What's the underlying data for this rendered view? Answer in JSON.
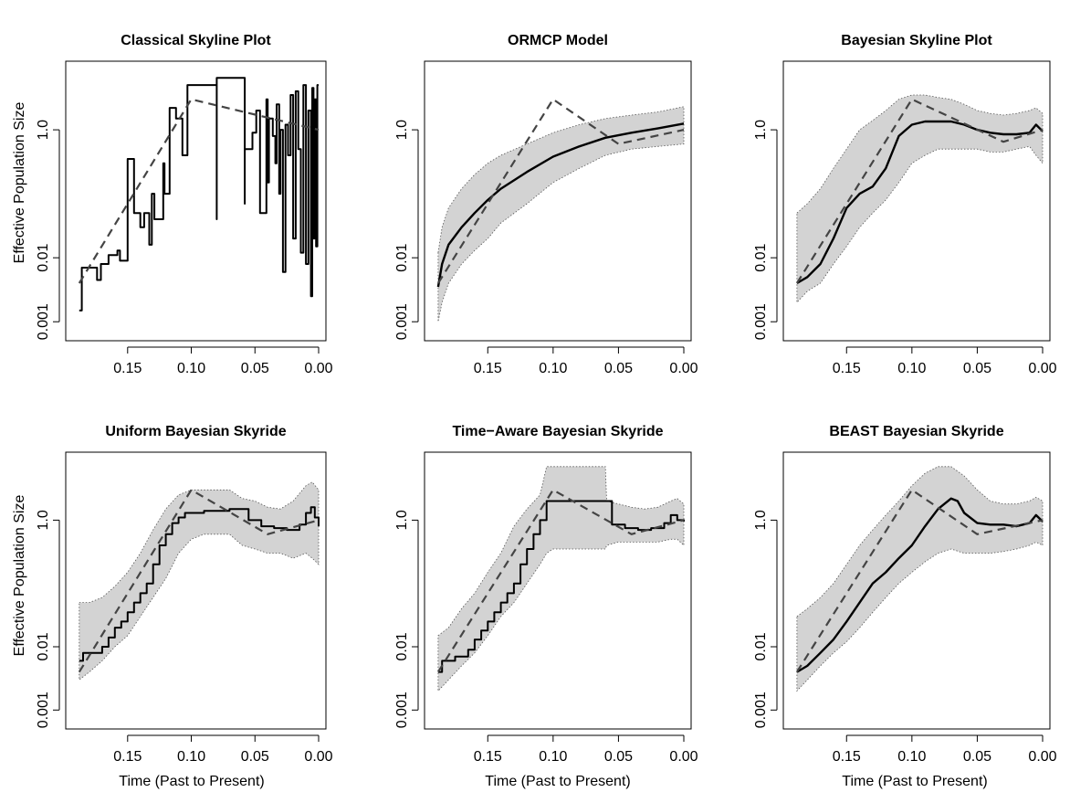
{
  "figure": {
    "xlabel": "Time (Past to Present)",
    "ylabel": "Effective Population Size"
  },
  "chart_data": [
    {
      "type": "line",
      "title": "Classical Skyline Plot",
      "xlabel": "",
      "ylabel": "Effective Population Size",
      "x_ticks": [
        "0.15",
        "0.10",
        "0.05",
        "0.00"
      ],
      "y_ticks": [
        "0.001",
        "0.01",
        "1.0"
      ],
      "y_scale": "log",
      "x_reversed": true,
      "xlim": [
        0.19,
        0.0
      ],
      "ylim": [
        0.0008,
        8.5
      ],
      "band": false,
      "series": [
        {
          "style": "solid-step",
          "x": [
            0.188,
            0.186,
            0.186,
            0.182,
            0.174,
            0.174,
            0.171,
            0.171,
            0.165,
            0.163,
            0.158,
            0.156,
            0.156,
            0.15,
            0.15,
            0.145,
            0.145,
            0.14,
            0.14,
            0.137,
            0.137,
            0.133,
            0.133,
            0.131,
            0.131,
            0.129,
            0.129,
            0.122,
            0.122,
            0.121,
            0.121,
            0.117,
            0.117,
            0.112,
            0.112,
            0.107,
            0.107,
            0.103,
            0.103,
            0.08,
            0.08,
            0.08,
            0.08,
            0.058,
            0.058,
            0.058,
            0.058,
            0.052,
            0.052,
            0.049,
            0.049,
            0.046,
            0.046,
            0.041,
            0.041,
            0.04,
            0.04,
            0.039,
            0.039,
            0.036,
            0.036,
            0.034,
            0.034,
            0.033,
            0.033,
            0.031,
            0.031,
            0.03,
            0.03,
            0.028,
            0.028,
            0.026,
            0.026,
            0.024,
            0.024,
            0.022,
            0.022,
            0.02,
            0.02,
            0.018,
            0.018,
            0.016,
            0.016,
            0.014,
            0.014,
            0.012,
            0.012,
            0.01,
            0.01,
            0.008,
            0.008,
            0.006,
            0.006,
            0.005,
            0.005,
            0.004,
            0.004,
            0.003,
            0.003,
            0.002,
            0.002,
            0.001,
            0.001,
            0.0
          ],
          "y": [
            0.0015,
            0.0015,
            0.007,
            0.007,
            0.007,
            0.0045,
            0.0045,
            0.008,
            0.011,
            0.011,
            0.013,
            0.013,
            0.009,
            0.009,
            0.35,
            0.35,
            0.05,
            0.05,
            0.03,
            0.03,
            0.05,
            0.05,
            0.016,
            0.016,
            0.1,
            0.1,
            0.04,
            0.04,
            0.3,
            0.3,
            0.1,
            0.1,
            2.2,
            2.2,
            1.5,
            1.5,
            0.4,
            0.4,
            5.0,
            5.0,
            0.04,
            0.04,
            6.5,
            6.5,
            0.07,
            0.07,
            0.5,
            0.5,
            0.9,
            0.9,
            2.0,
            2.0,
            0.05,
            0.05,
            3.0,
            3.0,
            0.15,
            0.15,
            1.5,
            1.5,
            0.8,
            0.8,
            0.3,
            0.3,
            2.5,
            2.5,
            0.1,
            0.1,
            1.0,
            1.0,
            0.006,
            0.006,
            1.2,
            1.2,
            0.4,
            0.4,
            3.5,
            3.5,
            0.02,
            0.02,
            4.0,
            4.0,
            0.5,
            0.5,
            0.012,
            0.012,
            5.0,
            5.0,
            0.008,
            0.008,
            2.0,
            2.0,
            0.0025,
            0.0025,
            4.5,
            4.5,
            0.02,
            0.02,
            3.0,
            3.0,
            0.015,
            0.015,
            5.0,
            5.0
          ]
        },
        {
          "style": "dashed",
          "x": [
            0.188,
            0.1,
            0.0
          ],
          "y": [
            0.004,
            3.0,
            1.0
          ]
        }
      ]
    },
    {
      "type": "line",
      "title": "ORMCP Model",
      "xlabel": "",
      "ylabel": "",
      "x_ticks": [
        "0.15",
        "0.10",
        "0.05",
        "0.00"
      ],
      "y_ticks": [
        "0.001",
        "0.01",
        "1.0"
      ],
      "y_scale": "log",
      "x_reversed": true,
      "xlim": [
        0.19,
        0.0
      ],
      "ylim": [
        0.0008,
        8.5
      ],
      "band": true,
      "band_x": [
        0.188,
        0.185,
        0.18,
        0.17,
        0.16,
        0.15,
        0.14,
        0.12,
        0.1,
        0.08,
        0.06,
        0.04,
        0.02,
        0.0
      ],
      "band_upper": [
        0.012,
        0.03,
        0.06,
        0.12,
        0.2,
        0.3,
        0.4,
        0.6,
        0.9,
        1.2,
        1.5,
        1.7,
        1.9,
        2.3
      ],
      "band_lower": [
        0.001,
        0.002,
        0.004,
        0.008,
        0.013,
        0.02,
        0.035,
        0.07,
        0.15,
        0.25,
        0.4,
        0.5,
        0.55,
        0.6
      ],
      "series": [
        {
          "style": "solid",
          "x": [
            0.188,
            0.185,
            0.18,
            0.17,
            0.16,
            0.15,
            0.14,
            0.12,
            0.1,
            0.08,
            0.06,
            0.04,
            0.02,
            0.0
          ],
          "y": [
            0.0035,
            0.008,
            0.016,
            0.03,
            0.05,
            0.08,
            0.12,
            0.22,
            0.38,
            0.55,
            0.75,
            0.9,
            1.05,
            1.25
          ]
        },
        {
          "style": "dashed",
          "x": [
            0.188,
            0.1,
            0.05,
            0.0
          ],
          "y": [
            0.004,
            3.0,
            0.6,
            1.0
          ]
        }
      ]
    },
    {
      "type": "line",
      "title": "Bayesian Skyline Plot",
      "xlabel": "",
      "ylabel": "",
      "x_ticks": [
        "0.15",
        "0.10",
        "0.05",
        "0.00"
      ],
      "y_ticks": [
        "0.001",
        "0.01",
        "1.0"
      ],
      "y_scale": "log",
      "x_reversed": true,
      "xlim": [
        0.19,
        0.0
      ],
      "ylim": [
        0.0008,
        8.5
      ],
      "band": true,
      "band_x": [
        0.188,
        0.18,
        0.17,
        0.16,
        0.15,
        0.14,
        0.13,
        0.12,
        0.11,
        0.1,
        0.09,
        0.08,
        0.07,
        0.06,
        0.05,
        0.04,
        0.03,
        0.02,
        0.01,
        0.005,
        0.0
      ],
      "band_upper": [
        0.05,
        0.07,
        0.12,
        0.25,
        0.5,
        1.0,
        1.4,
        2.0,
        3.0,
        3.5,
        3.5,
        3.2,
        3.0,
        2.5,
        2.0,
        1.8,
        1.7,
        1.8,
        2.0,
        2.2,
        1.8
      ],
      "band_lower": [
        0.002,
        0.003,
        0.004,
        0.008,
        0.015,
        0.03,
        0.05,
        0.08,
        0.15,
        0.3,
        0.4,
        0.5,
        0.5,
        0.5,
        0.5,
        0.45,
        0.45,
        0.5,
        0.55,
        0.4,
        0.3
      ],
      "series": [
        {
          "style": "solid",
          "x": [
            0.188,
            0.18,
            0.17,
            0.16,
            0.15,
            0.14,
            0.13,
            0.12,
            0.11,
            0.1,
            0.09,
            0.08,
            0.07,
            0.06,
            0.05,
            0.04,
            0.03,
            0.02,
            0.01,
            0.005,
            0.0
          ],
          "y": [
            0.004,
            0.005,
            0.008,
            0.02,
            0.06,
            0.1,
            0.13,
            0.25,
            0.8,
            1.2,
            1.35,
            1.35,
            1.35,
            1.2,
            1.0,
            0.9,
            0.85,
            0.85,
            0.9,
            1.2,
            0.95
          ]
        },
        {
          "style": "dashed",
          "x": [
            0.188,
            0.1,
            0.03,
            0.0
          ],
          "y": [
            0.004,
            3.0,
            0.65,
            1.0
          ]
        }
      ]
    },
    {
      "type": "line",
      "title": "Uniform Bayesian Skyride",
      "xlabel": "Time (Past to Present)",
      "ylabel": "Effective Population Size",
      "x_ticks": [
        "0.15",
        "0.10",
        "0.05",
        "0.00"
      ],
      "y_ticks": [
        "0.001",
        "0.01",
        "1.0"
      ],
      "y_scale": "log",
      "x_reversed": true,
      "xlim": [
        0.19,
        0.0
      ],
      "ylim": [
        0.0008,
        8.5
      ],
      "band": true,
      "band_x": [
        0.188,
        0.18,
        0.17,
        0.16,
        0.15,
        0.14,
        0.13,
        0.12,
        0.11,
        0.1,
        0.09,
        0.08,
        0.07,
        0.06,
        0.05,
        0.04,
        0.03,
        0.02,
        0.01,
        0.005,
        0.0
      ],
      "band_upper": [
        0.05,
        0.05,
        0.06,
        0.09,
        0.15,
        0.3,
        0.7,
        1.5,
        2.5,
        3.0,
        3.0,
        3.0,
        3.0,
        2.2,
        2.0,
        1.6,
        1.5,
        2.0,
        3.5,
        4.0,
        3.0
      ],
      "band_lower": [
        0.003,
        0.004,
        0.006,
        0.01,
        0.015,
        0.03,
        0.06,
        0.12,
        0.3,
        0.5,
        0.6,
        0.6,
        0.6,
        0.4,
        0.35,
        0.3,
        0.3,
        0.25,
        0.3,
        0.25,
        0.2
      ],
      "series": [
        {
          "style": "solid-step",
          "x": [
            0.188,
            0.185,
            0.178,
            0.17,
            0.165,
            0.16,
            0.155,
            0.15,
            0.145,
            0.14,
            0.135,
            0.13,
            0.125,
            0.12,
            0.115,
            0.11,
            0.105,
            0.09,
            0.07,
            0.055,
            0.045,
            0.035,
            0.025,
            0.015,
            0.01,
            0.006,
            0.003,
            0.0
          ],
          "y": [
            0.006,
            0.008,
            0.008,
            0.01,
            0.014,
            0.02,
            0.025,
            0.035,
            0.05,
            0.07,
            0.1,
            0.2,
            0.4,
            0.6,
            0.9,
            1.1,
            1.3,
            1.4,
            1.5,
            1.0,
            0.8,
            0.75,
            0.7,
            0.85,
            1.3,
            1.6,
            1.1,
            0.8
          ]
        },
        {
          "style": "dashed",
          "x": [
            0.188,
            0.1,
            0.04,
            0.0
          ],
          "y": [
            0.004,
            3.0,
            0.6,
            1.0
          ]
        }
      ]
    },
    {
      "type": "line",
      "title": "Time−Aware Bayesian Skyride",
      "xlabel": "Time (Past to Present)",
      "ylabel": "",
      "x_ticks": [
        "0.15",
        "0.10",
        "0.05",
        "0.00"
      ],
      "y_ticks": [
        "0.001",
        "0.01",
        "1.0"
      ],
      "y_scale": "log",
      "x_reversed": true,
      "xlim": [
        0.19,
        0.0
      ],
      "ylim": [
        0.0008,
        8.5
      ],
      "band": true,
      "band_x": [
        0.188,
        0.18,
        0.17,
        0.16,
        0.15,
        0.14,
        0.13,
        0.12,
        0.11,
        0.105,
        0.1,
        0.06,
        0.059,
        0.05,
        0.04,
        0.03,
        0.02,
        0.01,
        0.005,
        0.0
      ],
      "band_upper": [
        0.015,
        0.02,
        0.04,
        0.07,
        0.15,
        0.3,
        0.8,
        1.5,
        2.5,
        7.0,
        7.0,
        7.0,
        2.0,
        1.8,
        1.6,
        1.5,
        1.6,
        2.0,
        2.2,
        1.8
      ],
      "band_lower": [
        0.002,
        0.003,
        0.005,
        0.008,
        0.015,
        0.03,
        0.05,
        0.1,
        0.2,
        0.3,
        0.35,
        0.35,
        0.4,
        0.45,
        0.45,
        0.45,
        0.45,
        0.5,
        0.5,
        0.4
      ],
      "series": [
        {
          "style": "solid-step",
          "x": [
            0.188,
            0.185,
            0.175,
            0.165,
            0.16,
            0.155,
            0.15,
            0.145,
            0.14,
            0.135,
            0.13,
            0.125,
            0.12,
            0.115,
            0.11,
            0.105,
            0.06,
            0.055,
            0.045,
            0.035,
            0.025,
            0.015,
            0.01,
            0.005,
            0.0
          ],
          "y": [
            0.004,
            0.006,
            0.007,
            0.009,
            0.013,
            0.018,
            0.025,
            0.035,
            0.05,
            0.07,
            0.1,
            0.2,
            0.35,
            0.6,
            1.0,
            2.0,
            2.0,
            0.85,
            0.75,
            0.7,
            0.75,
            0.9,
            1.2,
            1.0,
            0.95
          ]
        },
        {
          "style": "dashed",
          "x": [
            0.188,
            0.1,
            0.04,
            0.0
          ],
          "y": [
            0.004,
            3.0,
            0.6,
            1.0
          ]
        }
      ]
    },
    {
      "type": "line",
      "title": "BEAST Bayesian Skyride",
      "xlabel": "Time (Past to Present)",
      "ylabel": "",
      "x_ticks": [
        "0.15",
        "0.10",
        "0.05",
        "0.00"
      ],
      "y_ticks": [
        "0.001",
        "0.01",
        "1.0"
      ],
      "y_scale": "log",
      "x_reversed": true,
      "xlim": [
        0.19,
        0.0
      ],
      "ylim": [
        0.0008,
        8.5
      ],
      "band": true,
      "band_x": [
        0.188,
        0.18,
        0.17,
        0.16,
        0.15,
        0.14,
        0.13,
        0.12,
        0.11,
        0.1,
        0.09,
        0.08,
        0.07,
        0.06,
        0.05,
        0.04,
        0.03,
        0.02,
        0.01,
        0.005,
        0.0
      ],
      "band_upper": [
        0.03,
        0.04,
        0.06,
        0.1,
        0.2,
        0.4,
        0.7,
        1.2,
        2.0,
        3.5,
        5.5,
        7.0,
        7.0,
        5.0,
        3.0,
        2.0,
        1.8,
        1.8,
        2.0,
        2.3,
        2.0
      ],
      "band_lower": [
        0.002,
        0.003,
        0.005,
        0.008,
        0.012,
        0.02,
        0.035,
        0.06,
        0.1,
        0.15,
        0.22,
        0.3,
        0.35,
        0.3,
        0.3,
        0.3,
        0.32,
        0.35,
        0.4,
        0.45,
        0.4
      ],
      "series": [
        {
          "style": "solid",
          "x": [
            0.188,
            0.18,
            0.17,
            0.16,
            0.15,
            0.14,
            0.13,
            0.12,
            0.11,
            0.1,
            0.09,
            0.08,
            0.07,
            0.065,
            0.06,
            0.05,
            0.04,
            0.03,
            0.02,
            0.01,
            0.005,
            0.0
          ],
          "y": [
            0.004,
            0.005,
            0.008,
            0.013,
            0.025,
            0.05,
            0.1,
            0.15,
            0.25,
            0.4,
            0.8,
            1.5,
            2.2,
            2.0,
            1.3,
            0.9,
            0.85,
            0.85,
            0.8,
            0.9,
            1.2,
            0.95
          ]
        },
        {
          "style": "dashed",
          "x": [
            0.188,
            0.1,
            0.05,
            0.0
          ],
          "y": [
            0.004,
            3.0,
            0.6,
            1.0
          ]
        }
      ]
    }
  ]
}
